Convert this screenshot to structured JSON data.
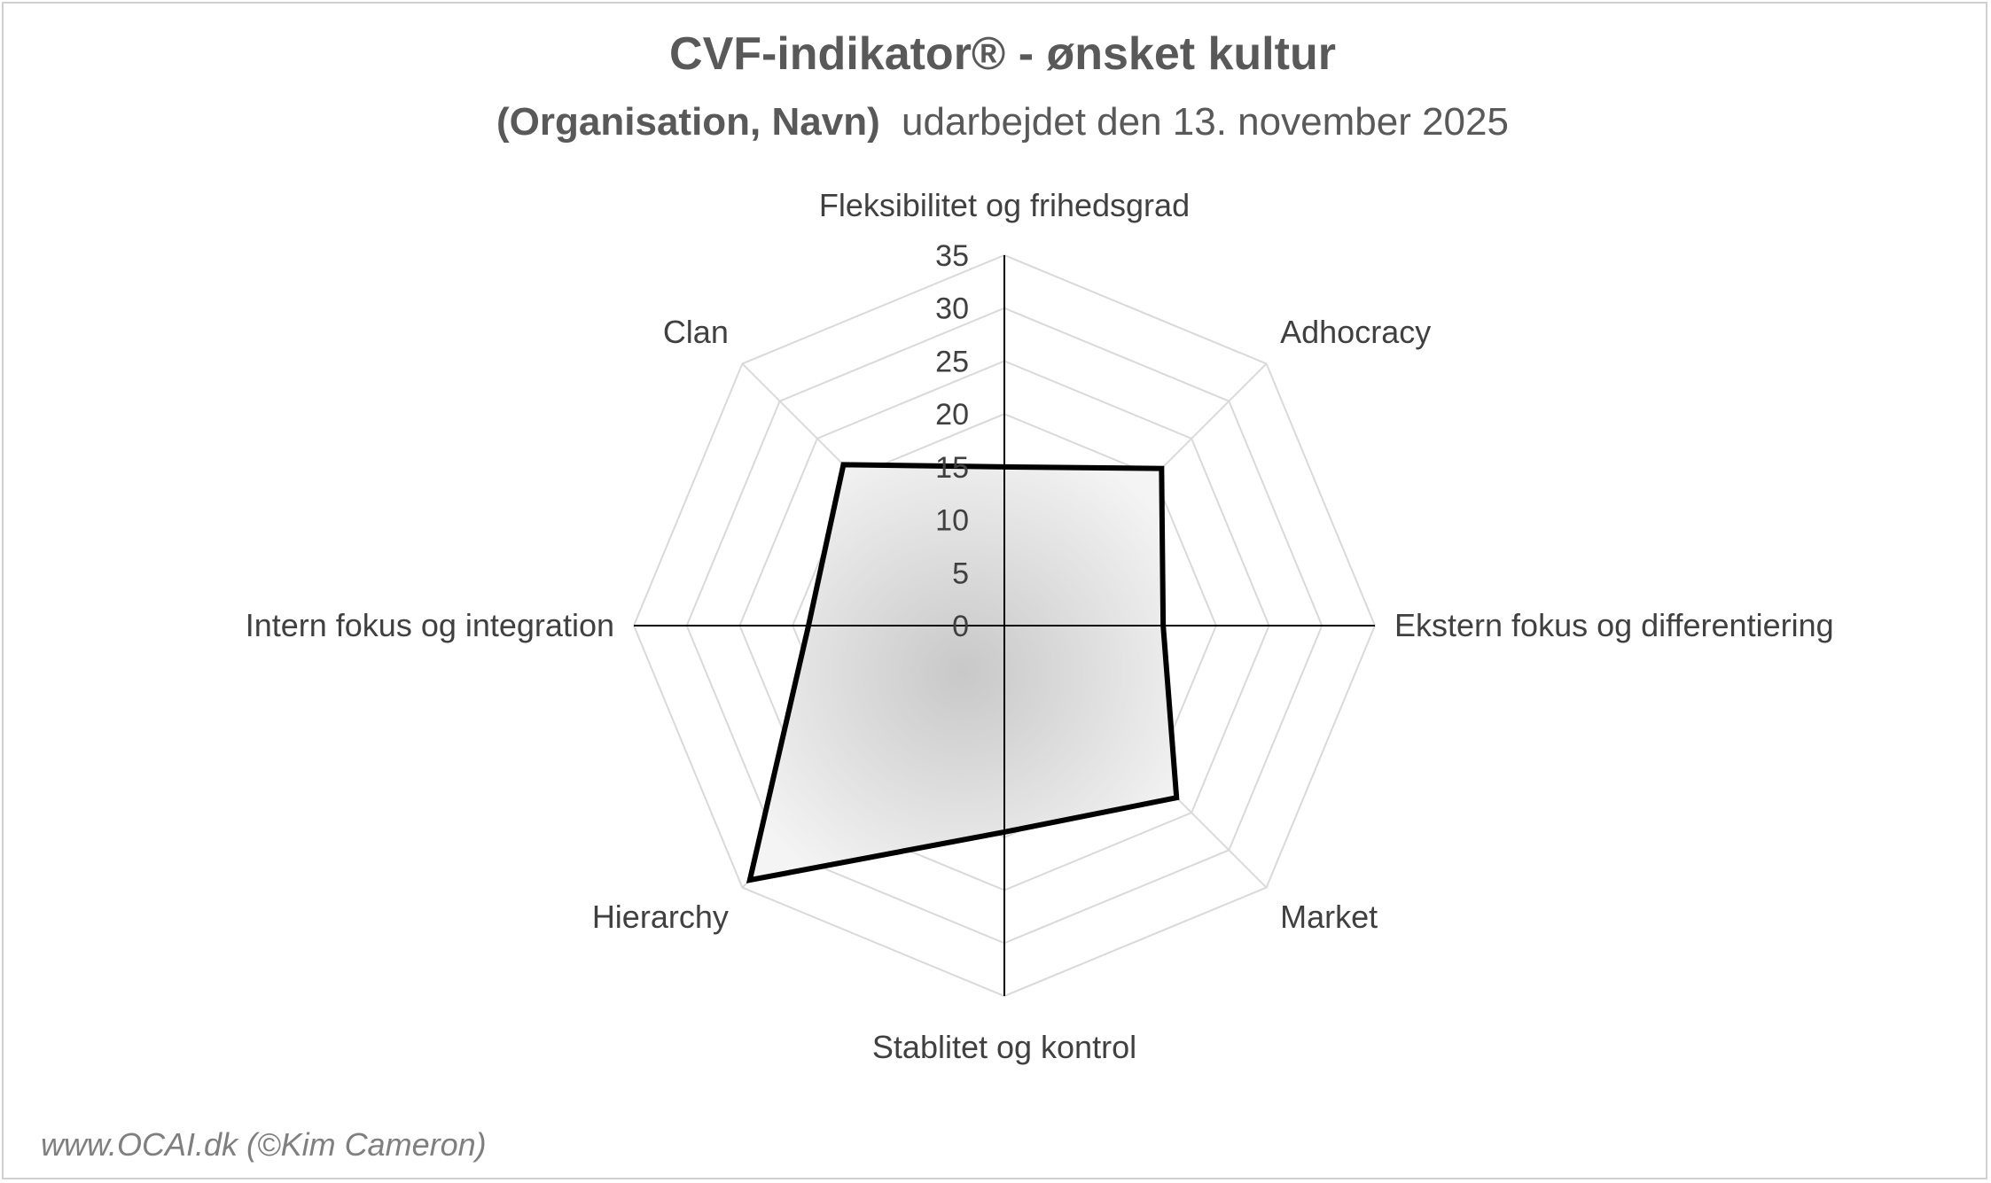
{
  "chart_data": {
    "type": "radar",
    "title": "CVF-indikator® - ønsket kultur",
    "subtitle_bold": "(Organisation, Navn)",
    "subtitle_rest": "udarbejdet den 13. november 2025",
    "categories": [
      "Fleksibilitet og frihedsgrad",
      "Adhocracy",
      "Ekstern fokus og differentiering",
      "Market",
      "Stablitet og kontrol",
      "Hierarchy",
      "Intern fokus og integration",
      "Clan"
    ],
    "ticks": [
      "0",
      "5",
      "10",
      "15",
      "20",
      "25",
      "30",
      "35"
    ],
    "rlim": [
      0,
      35
    ],
    "series": [
      {
        "values": [
          15,
          21,
          15,
          23,
          19.5,
          34,
          18.5,
          21.5
        ]
      }
    ],
    "footer": "www.OCAI.dk (©Kim Cameron)",
    "colors": {
      "title": "#595959",
      "labels": "#404040",
      "grid": "#d9d9d9",
      "axis": "#000000",
      "series_line": "#000000",
      "series_fill": "#e8e8e8",
      "footer": "#7f7f7f"
    }
  }
}
